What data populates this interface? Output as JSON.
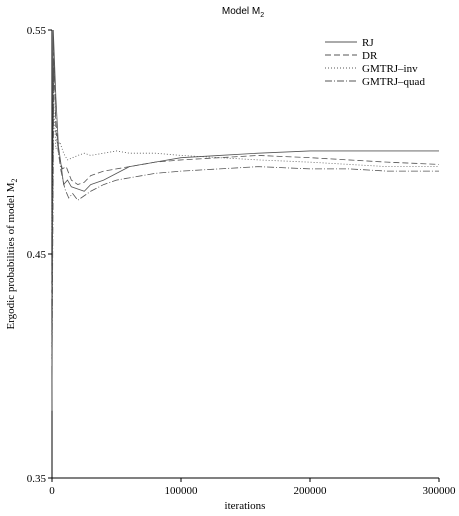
{
  "chart_data": {
    "type": "line",
    "title": "Model M",
    "title_subscript": "2",
    "xlabel": "iterations",
    "ylabel": "Ergodic probabilities of model M",
    "ylabel_subscript": "2",
    "xlim": [
      0,
      300000
    ],
    "ylim": [
      0.35,
      0.55
    ],
    "x_ticks": [
      0,
      100000,
      200000,
      300000
    ],
    "x_tick_labels": [
      "0",
      "100000",
      "200000",
      "300000"
    ],
    "y_ticks": [
      0.35,
      0.45,
      0.55
    ],
    "y_tick_labels": [
      "0.35",
      "0.45",
      "0.55"
    ],
    "grid": false,
    "legend_position": "top-right",
    "series": [
      {
        "name": "RJ",
        "dash": "solid",
        "color": "#555555",
        "x": [
          0,
          1000,
          3000,
          5000,
          7000,
          9000,
          12000,
          15000,
          20000,
          25000,
          30000,
          40000,
          50000,
          60000,
          80000,
          100000,
          130000,
          160000,
          200000,
          230000,
          260000,
          300000
        ],
        "values": [
          0.38,
          0.55,
          0.52,
          0.498,
          0.49,
          0.481,
          0.483,
          0.48,
          0.479,
          0.478,
          0.481,
          0.483,
          0.486,
          0.489,
          0.491,
          0.493,
          0.494,
          0.495,
          0.496,
          0.496,
          0.496,
          0.496
        ]
      },
      {
        "name": "DR",
        "dash": "6 3",
        "color": "#555555",
        "x": [
          0,
          1500,
          3000,
          5000,
          8000,
          11000,
          15000,
          20000,
          25000,
          30000,
          40000,
          50000,
          60000,
          80000,
          100000,
          130000,
          160000,
          200000,
          230000,
          260000,
          300000
        ],
        "values": [
          0.43,
          0.54,
          0.505,
          0.495,
          0.488,
          0.489,
          0.483,
          0.481,
          0.482,
          0.485,
          0.487,
          0.488,
          0.489,
          0.491,
          0.492,
          0.493,
          0.494,
          0.493,
          0.492,
          0.491,
          0.49
        ]
      },
      {
        "name": "GMTRJ–inv",
        "dash": "1 2",
        "color": "#555555",
        "x": [
          0,
          1000,
          3000,
          6000,
          9000,
          12000,
          16000,
          20000,
          25000,
          30000,
          40000,
          50000,
          60000,
          80000,
          100000,
          130000,
          160000,
          200000,
          230000,
          260000,
          300000
        ],
        "values": [
          0.46,
          0.52,
          0.497,
          0.5,
          0.495,
          0.492,
          0.493,
          0.494,
          0.495,
          0.494,
          0.495,
          0.496,
          0.495,
          0.495,
          0.494,
          0.493,
          0.492,
          0.491,
          0.49,
          0.489,
          0.489
        ]
      },
      {
        "name": "GMTRJ–quad",
        "dash": "7 2 1 2",
        "color": "#555555",
        "x": [
          0,
          1500,
          3000,
          5000,
          7000,
          10000,
          13000,
          16000,
          20000,
          25000,
          30000,
          40000,
          50000,
          60000,
          80000,
          100000,
          130000,
          160000,
          200000,
          230000,
          260000,
          300000
        ],
        "values": [
          0.4,
          0.535,
          0.51,
          0.495,
          0.487,
          0.479,
          0.475,
          0.477,
          0.474,
          0.476,
          0.478,
          0.481,
          0.483,
          0.484,
          0.486,
          0.487,
          0.488,
          0.489,
          0.488,
          0.488,
          0.487,
          0.487
        ]
      }
    ]
  }
}
